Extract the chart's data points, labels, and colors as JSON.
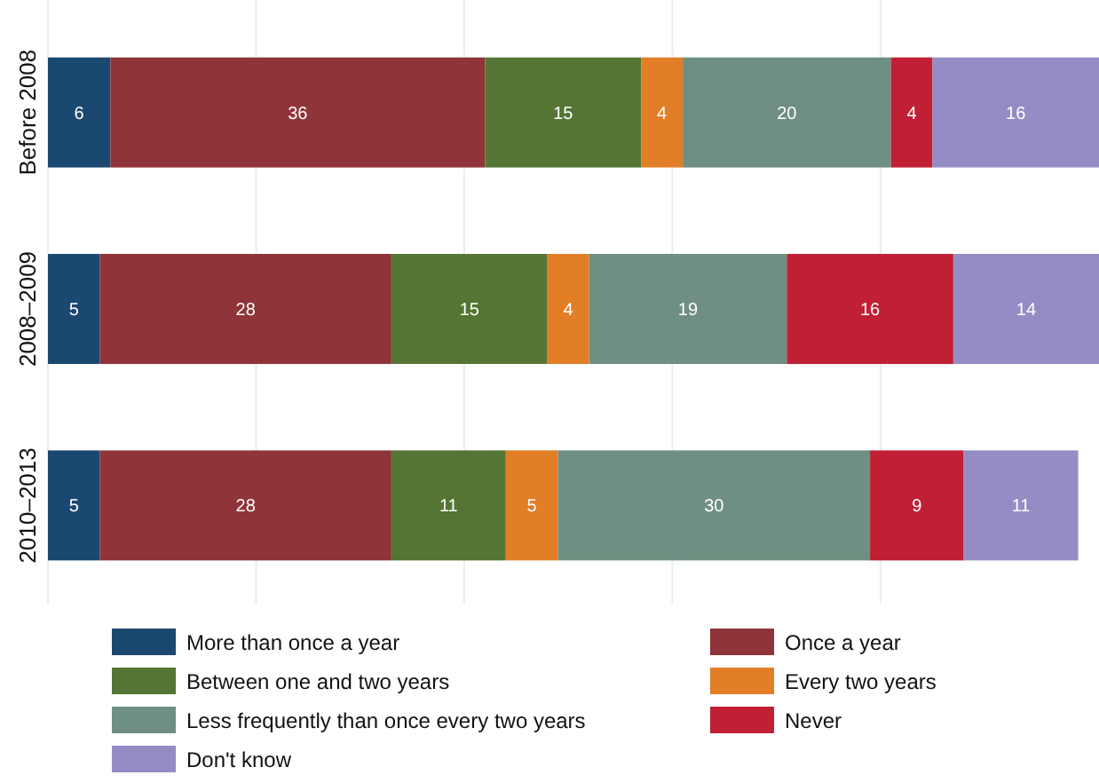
{
  "chart_data": {
    "type": "bar",
    "orientation": "horizontal",
    "stacked": true,
    "data_labels": true,
    "grid": "x",
    "tick_labels": "y",
    "legend": "bottom",
    "categories": [
      "Before 2008",
      "2008–2009",
      "2010–2013"
    ],
    "xlim": [
      0,
      101
    ],
    "xticks": [
      {
        "value": 0,
        "label": null
      },
      {
        "value": 20,
        "label": null
      },
      {
        "value": 40,
        "label": null
      },
      {
        "value": 60,
        "label": null
      },
      {
        "value": 80,
        "label": null
      }
    ],
    "series": [
      {
        "name": "More than once a year",
        "color": "#1b4870",
        "values": [
          6,
          5,
          5
        ]
      },
      {
        "name": "Once a year",
        "color": "#8f3439",
        "values": [
          36,
          28,
          28
        ]
      },
      {
        "name": "Between one and two years",
        "color": "#547533",
        "values": [
          15,
          15,
          11
        ]
      },
      {
        "name": "Every two years",
        "color": "#e27e26",
        "values": [
          4,
          4,
          5
        ]
      },
      {
        "name": "Less frequently than once every two years",
        "color": "#6e8f81",
        "values": [
          20,
          19,
          30
        ]
      },
      {
        "name": "Never",
        "color": "#c11f35",
        "values": [
          4,
          16,
          9
        ]
      },
      {
        "name": "Don't know",
        "color": "#948cc4",
        "values": [
          16,
          14,
          11
        ]
      }
    ]
  }
}
